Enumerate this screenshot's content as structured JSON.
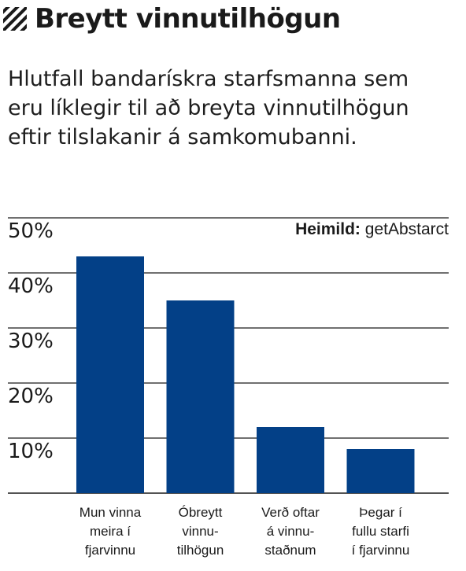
{
  "header": {
    "title": "Breytt vinnutilhögun",
    "icon": "hatch-icon"
  },
  "subtitle": "Hlutfall bandarískra starfsmanna sem eru líklegir til að breyta vinnutilhögun eftir tilslakanir á samkomubanni.",
  "source": {
    "label": "Heimild:",
    "value": "getAbstarct"
  },
  "colors": {
    "bar": "#034087",
    "grid": "#1a1a1a",
    "text": "#1a1a1a"
  },
  "chart_data": {
    "type": "bar",
    "categories": [
      [
        "Mun vinna",
        "meira í",
        "fjarvinnu"
      ],
      [
        "Óbreytt",
        "vinnu-",
        "tilhögun"
      ],
      [
        "Verð oftar",
        "á vinnu-",
        "staðnum"
      ],
      [
        "Þegar í",
        "fullu starfi",
        "í fjarvinnu"
      ]
    ],
    "values": [
      43,
      35,
      12,
      8
    ],
    "yticks": [
      "10%",
      "20%",
      "30%",
      "40%",
      "50%"
    ],
    "ytick_values": [
      10,
      20,
      30,
      40,
      50
    ],
    "ylim": [
      0,
      50
    ],
    "grid": true,
    "xlabel": "",
    "ylabel": ""
  }
}
